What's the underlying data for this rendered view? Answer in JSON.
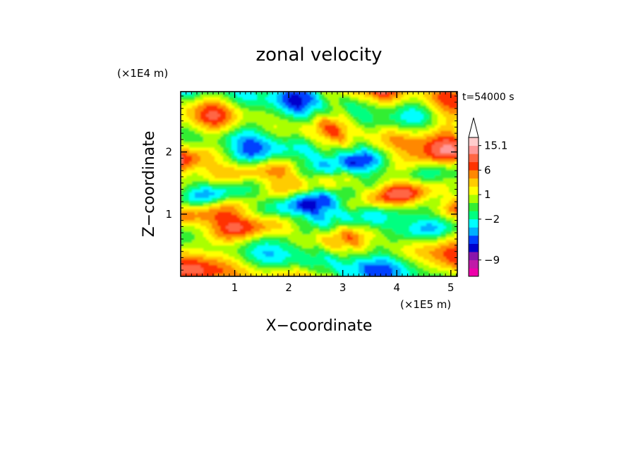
{
  "chart_data": {
    "type": "heatmap",
    "title": "zonal velocity",
    "xlabel": "X−coordinate",
    "ylabel": "Z−coordinate",
    "x_multiplier": "(×1E5 m)",
    "y_multiplier": "(×1E4 m)",
    "time_label": "t=54000 s",
    "xlim": [
      0,
      5.12
    ],
    "ylim": [
      0,
      2.97
    ],
    "x_ticks": [
      "1",
      "2",
      "3",
      "4",
      "5"
    ],
    "y_ticks": [
      "1",
      "2"
    ],
    "colorbar": {
      "levels_from_bottom": [
        "#ee00aa",
        "#c01aa8",
        "#8a16aa",
        "#0000cc",
        "#0040ff",
        "#00b0ff",
        "#00ffff",
        "#00ff80",
        "#33ee33",
        "#aaff00",
        "#ffff00",
        "#ffcc00",
        "#ff8800",
        "#ff3300",
        "#ff6644",
        "#ff9999",
        "#ffcccc"
      ],
      "extend_top": true,
      "tick_labels": [
        "15.1",
        "6",
        "1",
        "−2",
        "−9"
      ],
      "tick_level_index": [
        16,
        13,
        10,
        7,
        2
      ]
    }
  }
}
